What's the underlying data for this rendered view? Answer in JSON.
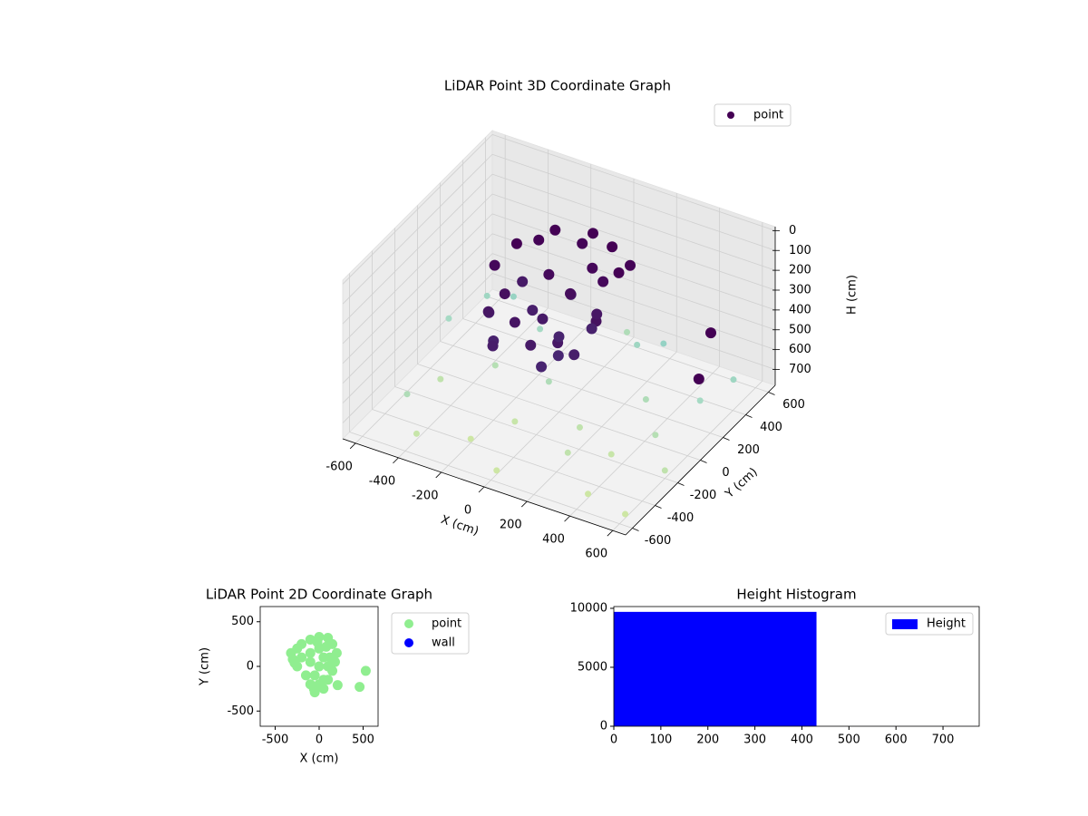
{
  "chart_data": [
    {
      "type": "scatter3d",
      "title": "LiDAR Point 3D Coordinate Graph",
      "xlabel": "X (cm)",
      "ylabel": "Y (cm)",
      "zlabel": "H (cm)",
      "xlim": [
        -660,
        660
      ],
      "ylim": [
        -660,
        660
      ],
      "zlim": [
        780,
        -20
      ],
      "xticks": [
        -600,
        -400,
        -200,
        0,
        200,
        400,
        600
      ],
      "yticks": [
        -600,
        -400,
        -200,
        0,
        200,
        400,
        600
      ],
      "zticks": [
        0,
        100,
        200,
        300,
        400,
        500,
        600,
        700
      ],
      "grid": true,
      "legend": "upper right",
      "series": [
        {
          "name": "point",
          "color": "#440154",
          "x": [
            -600,
            -620,
            -550,
            -400,
            -300,
            -200,
            -100,
            0,
            100,
            200,
            300,
            400,
            500,
            600,
            550,
            -500,
            -350,
            -100,
            150,
            350,
            450,
            250,
            -450,
            600,
            0,
            550,
            600,
            -250,
            -150,
            0,
            100,
            200,
            -300,
            -200,
            -100,
            0,
            100,
            200,
            -250,
            -150,
            0,
            100,
            -50,
            150,
            -200,
            50,
            -100,
            50,
            150,
            -50,
            -300,
            -200,
            -50,
            100,
            0,
            -150,
            50,
            200,
            -250
          ],
          "y": [
            500,
            200,
            -300,
            -500,
            400,
            -400,
            100,
            -550,
            500,
            -300,
            200,
            -500,
            300,
            -200,
            500,
            -100,
            100,
            -200,
            -100,
            -200,
            0,
            450,
            450,
            -550,
            600,
            300,
            100,
            100,
            250,
            300,
            280,
            150,
            0,
            -100,
            -200,
            -250,
            -200,
            -50,
            150,
            50,
            0,
            100,
            200,
            -150,
            -200,
            -100,
            100,
            200,
            50,
            -50,
            -50,
            200,
            300,
            200,
            100,
            -300,
            -250,
            250,
            -150
          ],
          "z": [
            700,
            650,
            720,
            750,
            700,
            760,
            720,
            760,
            690,
            740,
            720,
            760,
            710,
            740,
            700,
            740,
            730,
            750,
            745,
            750,
            730,
            600,
            620,
            760,
            720,
            350,
            450,
            80,
            60,
            50,
            70,
            90,
            150,
            200,
            250,
            300,
            280,
            220,
            300,
            350,
            400,
            380,
            320,
            350,
            380,
            420,
            180,
            150,
            260,
            300,
            360,
            100,
            120,
            200,
            240,
            330,
            390,
            110,
            280
          ],
          "colors": [
            "#9fd6c2",
            "#a6dac4",
            "#b0dcb8",
            "#c7e5a9",
            "#a6dac4",
            "#cde6a4",
            "#b0dcb8",
            "#cde6a4",
            "#9fd6c2",
            "#c0e2ad",
            "#b0dcb8",
            "#cde6a4",
            "#a6dac4",
            "#c0e2ad",
            "#9fd6c2",
            "#c0e2ad",
            "#b6dfb4",
            "#c7e5a9",
            "#c0e2ad",
            "#c7e5a9",
            "#b6dfb4",
            "#95d2c4",
            "#98d3c3",
            "#cde6a4",
            "#b0dcb8",
            "#440154",
            "#440154",
            "#440154",
            "#440154",
            "#440154",
            "#440154",
            "#440154",
            "#45085a",
            "#46105f",
            "#471563",
            "#471a67",
            "#471866",
            "#46125f",
            "#471a67",
            "#481f6b",
            "#48246f",
            "#48226d",
            "#471c68",
            "#481f6b",
            "#48226d",
            "#482672",
            "#45095b",
            "#450759",
            "#471764",
            "#471a67",
            "#48206c",
            "#440356",
            "#440457",
            "#45085a",
            "#460e5d",
            "#481d6a",
            "#482470",
            "#440356",
            "#471764"
          ]
        }
      ]
    },
    {
      "type": "scatter",
      "title": "LiDAR Point 2D Coordinate Graph",
      "xlabel": "X (cm)",
      "ylabel": "Y (cm)",
      "xlim": [
        -670,
        670
      ],
      "ylim": [
        -670,
        670
      ],
      "xticks": [
        -500,
        0,
        500
      ],
      "yticks": [
        -500,
        0,
        500
      ],
      "legend": "outside upper right",
      "series": [
        {
          "name": "point",
          "color": "#90ee90",
          "x": [
            -300,
            -320,
            -250,
            -200,
            -100,
            0,
            100,
            150,
            200,
            180,
            150,
            100,
            50,
            -50,
            -100,
            -150,
            -250,
            -200,
            -100,
            0,
            50,
            0,
            -50,
            50,
            100,
            -100,
            0,
            210,
            460,
            530,
            -280,
            -20,
            80,
            -60,
            120
          ],
          "y": [
            80,
            150,
            200,
            250,
            300,
            330,
            320,
            250,
            150,
            50,
            -50,
            -150,
            -250,
            -290,
            -200,
            -100,
            0,
            100,
            150,
            200,
            100,
            0,
            -100,
            -150,
            0,
            50,
            -200,
            -210,
            -230,
            -50,
            40,
            270,
            220,
            -250,
            100
          ]
        },
        {
          "name": "wall",
          "color": "#0000ff",
          "x": [],
          "y": []
        }
      ]
    },
    {
      "type": "histogram",
      "title": "Height Histogram",
      "bins": [
        0,
        431,
        777
      ],
      "xlim": [
        0,
        777
      ],
      "ylim": [
        0,
        10150
      ],
      "xticks": [
        0,
        100,
        200,
        300,
        400,
        500,
        600,
        700
      ],
      "yticks": [
        0,
        5000,
        10000
      ],
      "legend": "upper right",
      "series": [
        {
          "name": "Height",
          "color": "#0000ff",
          "values": [
            9700,
            3
          ]
        }
      ]
    }
  ]
}
